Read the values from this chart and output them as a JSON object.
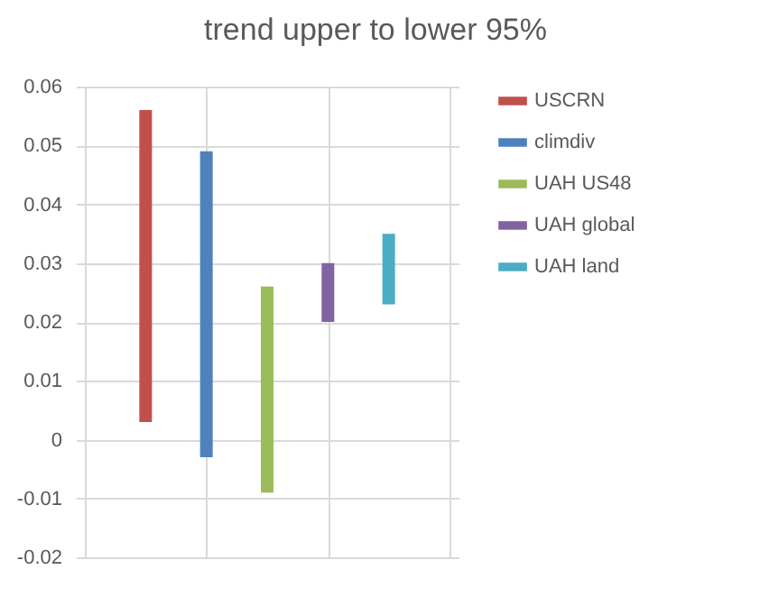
{
  "chart_data": {
    "type": "bar",
    "title": "trend upper to lower 95%",
    "categories": [
      null,
      null,
      null,
      null,
      null
    ],
    "ylim": [
      -0.02,
      0.06
    ],
    "yticks": [
      -0.02,
      -0.01,
      0,
      0.01,
      0.02,
      0.03,
      0.04,
      0.05,
      0.06
    ],
    "grid": true,
    "legend": "right",
    "series": [
      {
        "name": "USCRN",
        "color": "#c0504d",
        "values": [
          0.053,
          null,
          null,
          null,
          null
        ],
        "base": [
          0.003,
          null,
          null,
          null,
          null
        ]
      },
      {
        "name": "climdiv",
        "color": "#4f81bd",
        "values": [
          null,
          0.052,
          null,
          null,
          null
        ],
        "base": [
          null,
          -0.003,
          null,
          null,
          null
        ]
      },
      {
        "name": "UAH US48",
        "color": "#9bbb59",
        "values": [
          null,
          null,
          0.035,
          null,
          null
        ],
        "base": [
          null,
          null,
          -0.009,
          null,
          null
        ]
      },
      {
        "name": "UAH global",
        "color": "#8064a2",
        "values": [
          null,
          null,
          null,
          0.01,
          null
        ],
        "base": [
          null,
          null,
          null,
          0.02,
          null
        ]
      },
      {
        "name": "UAH land",
        "color": "#4bacc6",
        "values": [
          null,
          null,
          null,
          null,
          0.012
        ],
        "base": [
          null,
          null,
          null,
          null,
          0.023
        ]
      }
    ]
  }
}
